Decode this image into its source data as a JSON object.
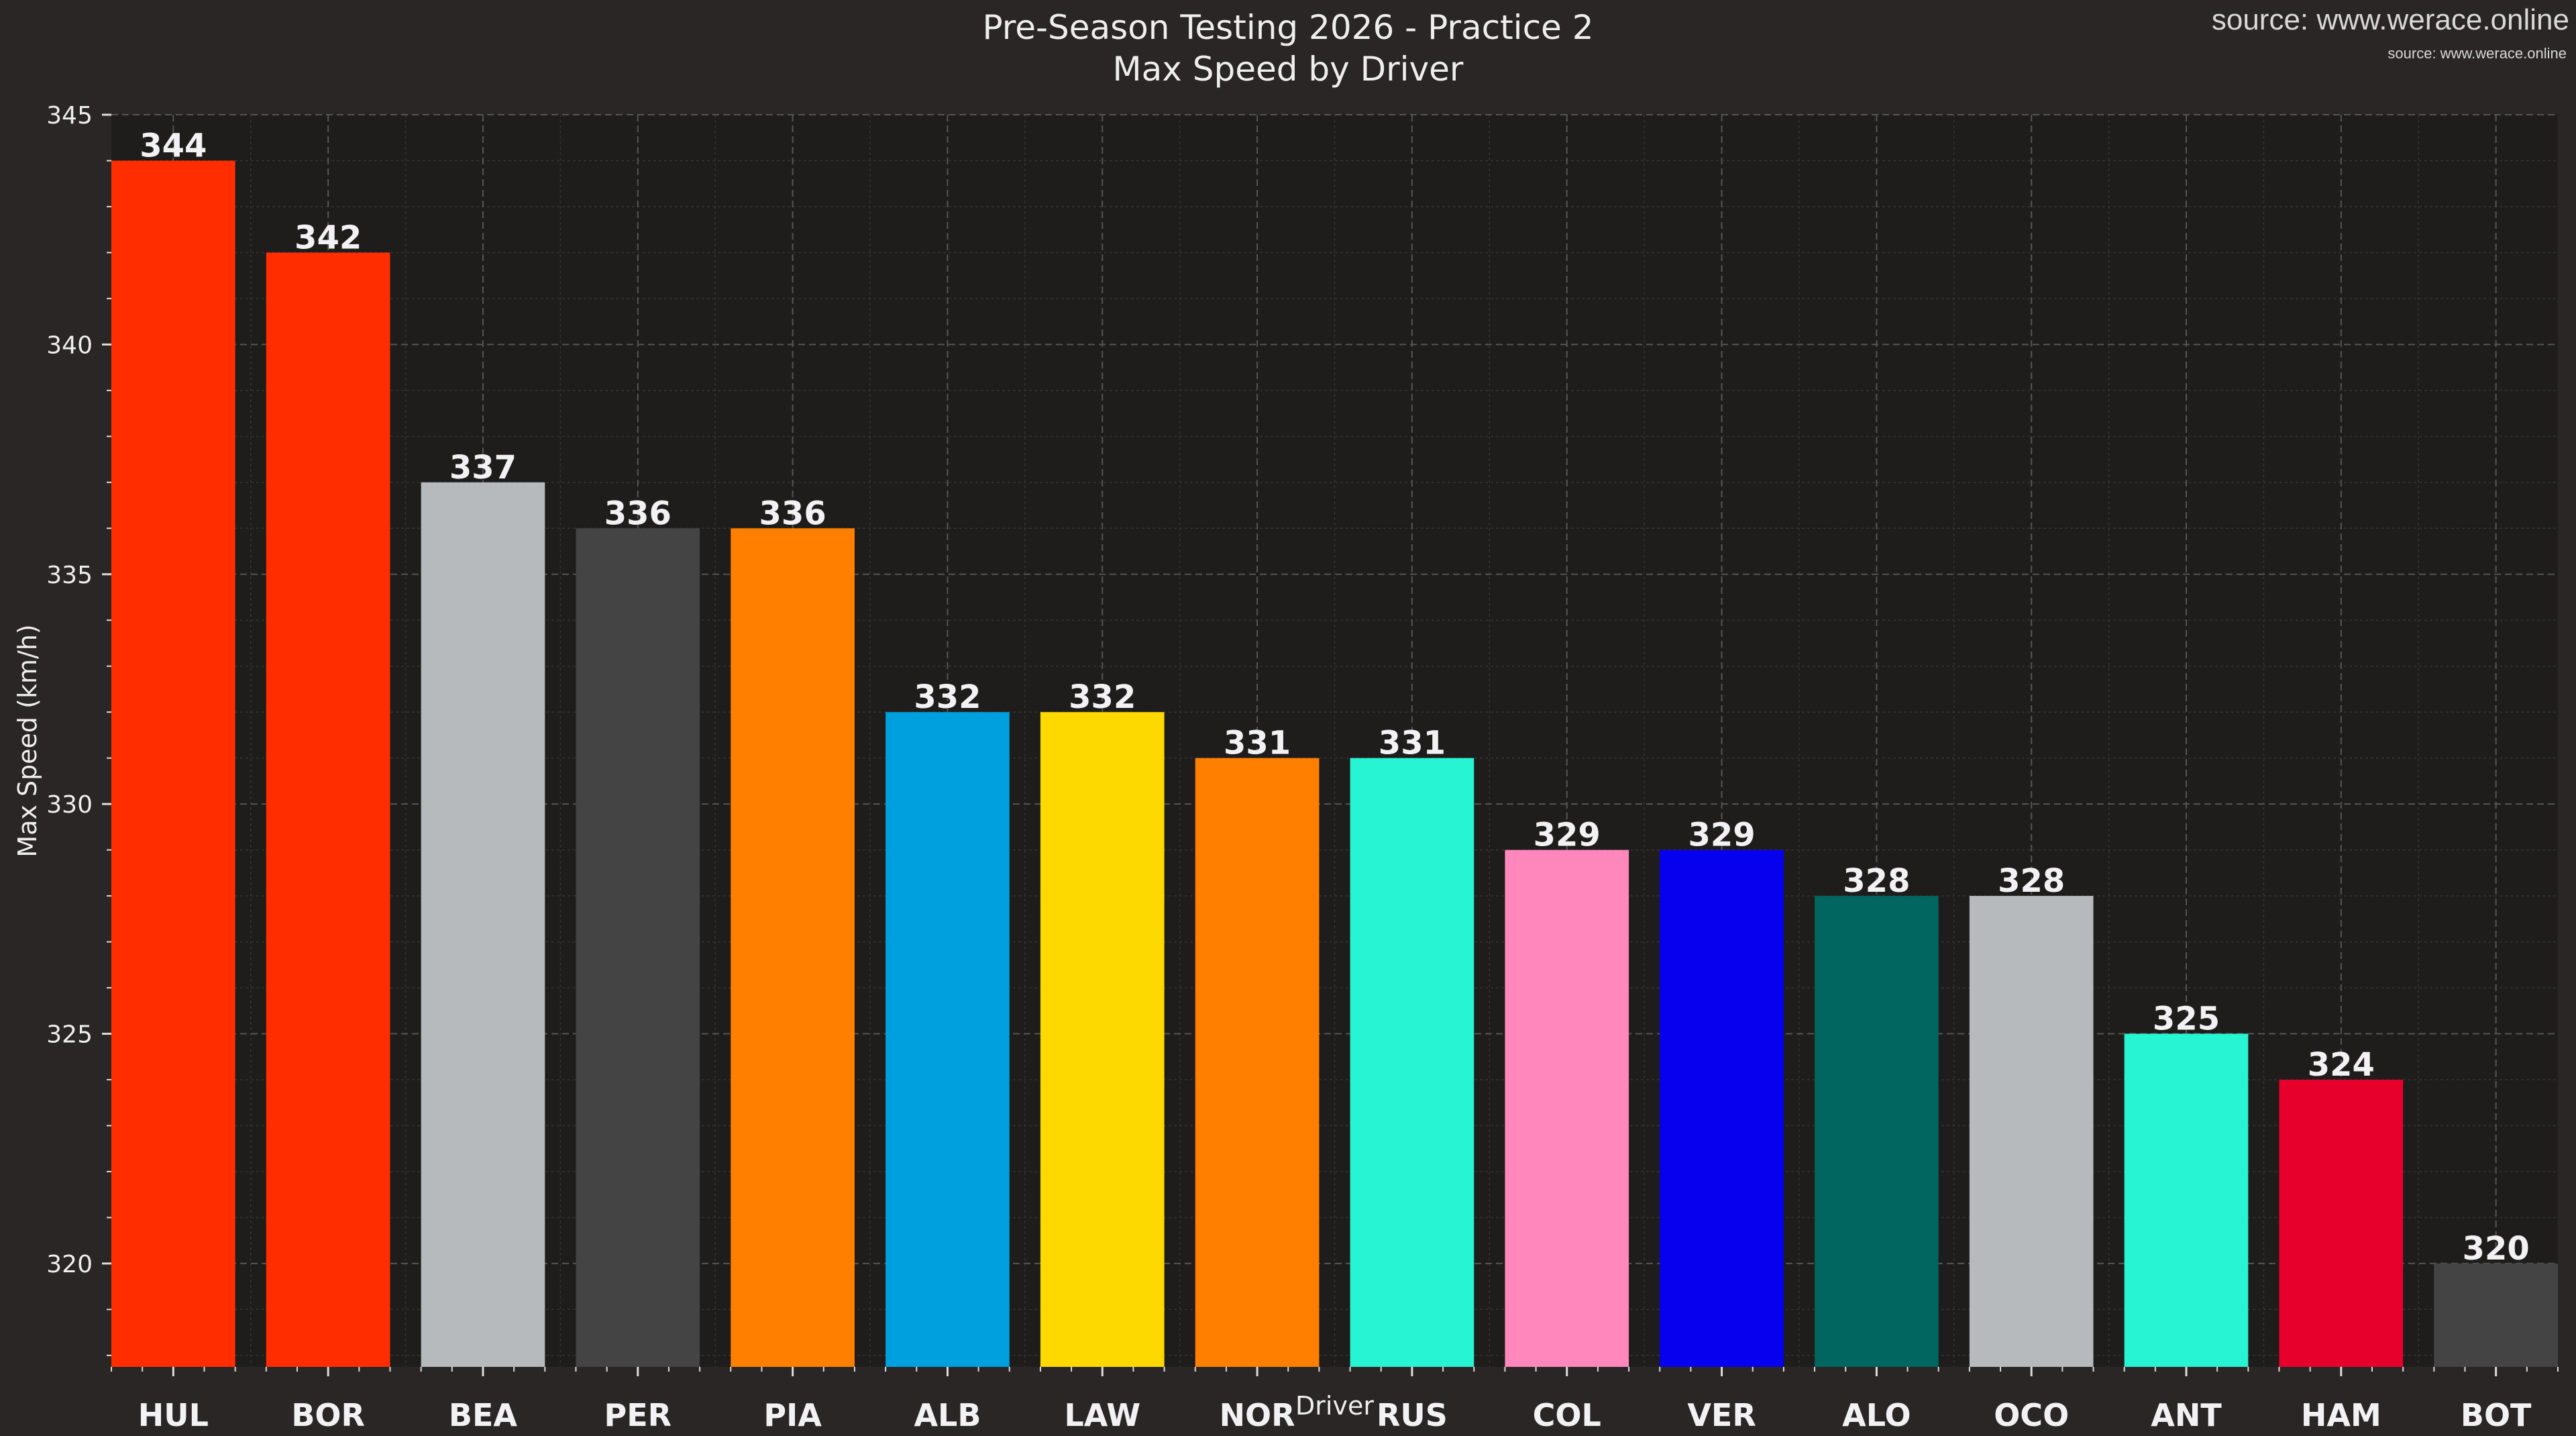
{
  "chart_data": {
    "type": "bar",
    "title": "Pre-Season Testing 2026 - Practice 2",
    "subtitle": "Max Speed by Driver",
    "source": "source: www.werace.online",
    "xlabel": "Driver",
    "ylabel": "Max Speed (km/h)",
    "ylim": [
      317.75,
      345
    ],
    "yticks": [
      320,
      325,
      330,
      335,
      340,
      345
    ],
    "grid": true,
    "categories": [
      "HUL",
      "BOR",
      "BEA",
      "PER",
      "PIA",
      "ALB",
      "LAW",
      "NOR",
      "RUS",
      "COL",
      "VER",
      "ALO",
      "OCO",
      "ANT",
      "HAM",
      "BOT"
    ],
    "values": [
      344,
      342,
      337,
      336,
      336,
      332,
      332,
      331,
      331,
      329,
      329,
      328,
      328,
      325,
      324,
      320
    ],
    "colors": [
      "#ff2d00",
      "#ff2d00",
      "#b6babd",
      "#444444",
      "#ff8000",
      "#00a0de",
      "#fed900",
      "#ff8000",
      "#27f4d2",
      "#ff87bc",
      "#0600ef",
      "#00665f",
      "#b6babd",
      "#27f4d2",
      "#e8002d",
      "#444444"
    ]
  },
  "colors": {
    "figure_bg": "#292625",
    "axes_bg": "#1e1d1b",
    "text": "#eeeeee",
    "grid": "#5a5a5a"
  }
}
